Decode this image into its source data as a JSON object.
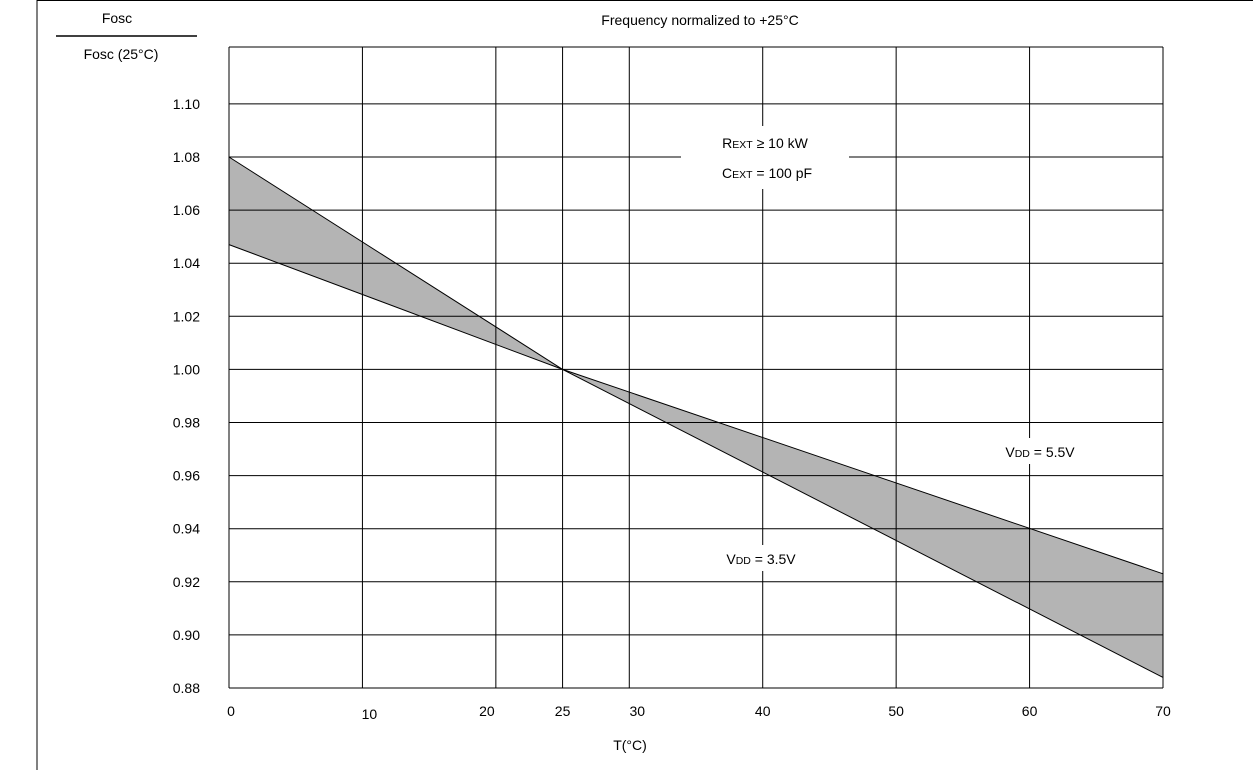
{
  "ylabel_numerator": "Fosc",
  "ylabel_denominator": "Fosc (25°C)",
  "annotations": {
    "rext": {
      "R": "R",
      "sub": "EXT",
      "rest": " ≥ 10 kW"
    },
    "cext": {
      "C": "C",
      "sub": "EXT",
      "rest": " = 100 pF"
    },
    "vdd_high": {
      "V": "V",
      "sub": "DD",
      "rest": " = 5.5V"
    },
    "vdd_low": {
      "V": "V",
      "sub": "DD",
      "rest": " = 3.5V"
    }
  },
  "colors": {
    "band_fill": "#b4b4b4",
    "grid": "#000000"
  },
  "chart_data": {
    "type": "area",
    "title": "Frequency normalized to +25°C",
    "xlabel": "T(°C)",
    "ylabel": "Fosc / Fosc (25°C)",
    "xlim": [
      0,
      70
    ],
    "ylim": [
      0.88,
      1.12
    ],
    "x_ticks": [
      0,
      10,
      20,
      25,
      30,
      40,
      50,
      60,
      70
    ],
    "y_ticks": [
      0.88,
      0.9,
      0.92,
      0.94,
      0.96,
      0.98,
      1.0,
      1.02,
      1.04,
      1.06,
      1.08,
      1.1
    ],
    "grid": true,
    "series": [
      {
        "name": "VDD = 3.5V",
        "x": [
          0,
          25,
          70
        ],
        "values": [
          1.08,
          1.0,
          0.884
        ]
      },
      {
        "name": "VDD = 5.5V",
        "x": [
          0,
          25,
          70
        ],
        "values": [
          1.047,
          1.0,
          0.923
        ]
      }
    ]
  }
}
